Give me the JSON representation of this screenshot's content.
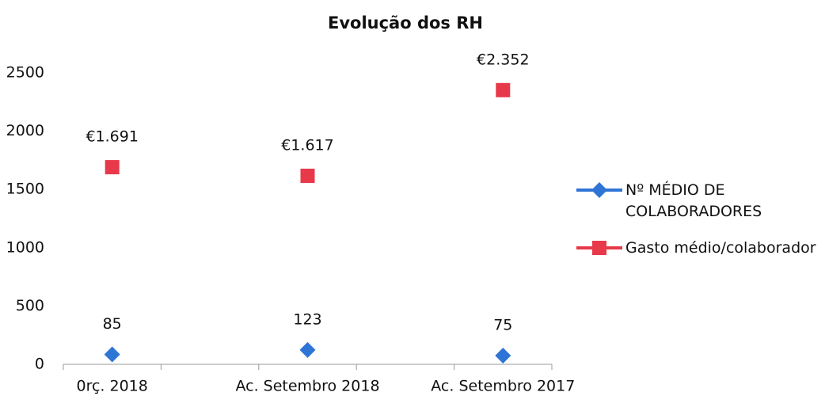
{
  "chart_data": {
    "type": "scatter",
    "title": "Evolução dos RH",
    "categories": [
      "0rç. 2018",
      "Ac. Setembro 2018",
      "Ac. Setembro 2017"
    ],
    "series": [
      {
        "name": "Nº MÉDIO DE COLABORADORES",
        "color": "#2e75d6",
        "values": [
          85,
          123,
          75
        ]
      },
      {
        "name": "Gasto médio/colaborador",
        "color": "#e8394a",
        "values": [
          1691,
          1617,
          2352
        ],
        "value_labels": [
          "€1.691",
          "€1.617",
          "€2.352"
        ]
      }
    ],
    "ylim": [
      0,
      2500
    ],
    "yticks": [
      0,
      500,
      1000,
      1500,
      2000,
      2500
    ],
    "legend": "right"
  }
}
